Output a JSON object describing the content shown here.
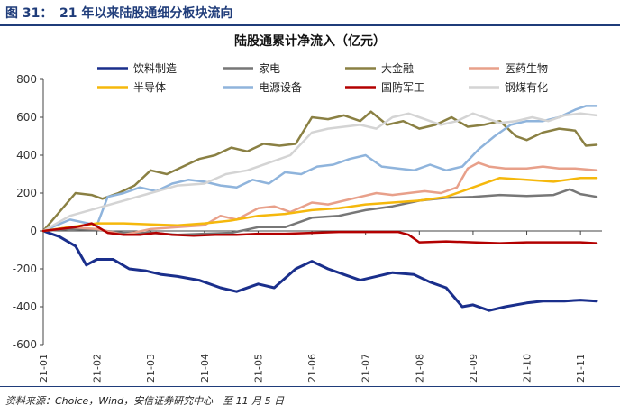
{
  "figure": {
    "label": "图 31：",
    "title": "21 年以来陆股通细分板块流向",
    "source": "资料来源：Choice，Wind，安信证券研究中心　至 11 月 5 日"
  },
  "chart_data": {
    "type": "line",
    "title": "陆股通累计净流入（亿元）",
    "xlabel": "",
    "ylabel": "",
    "ylim": [
      -600,
      800
    ],
    "yticks": [
      -600,
      -400,
      -200,
      0,
      200,
      400,
      600,
      800
    ],
    "xlim": [
      0,
      10.4
    ],
    "xticks": [
      {
        "label": "21-01",
        "x": 0
      },
      {
        "label": "21-02",
        "x": 1
      },
      {
        "label": "21-03",
        "x": 2
      },
      {
        "label": "21-04",
        "x": 3
      },
      {
        "label": "21-05",
        "x": 4
      },
      {
        "label": "21-06",
        "x": 5
      },
      {
        "label": "21-07",
        "x": 6
      },
      {
        "label": "21-08",
        "x": 7
      },
      {
        "label": "21-09",
        "x": 8
      },
      {
        "label": "21-10",
        "x": 9
      },
      {
        "label": "21-11",
        "x": 10
      }
    ],
    "grid": false,
    "legend": "top",
    "series": [
      {
        "name": "饮料制造",
        "color": "#1a2f8c",
        "width": 3,
        "x": [
          0,
          0.3,
          0.6,
          0.8,
          1.0,
          1.3,
          1.6,
          1.9,
          2.2,
          2.5,
          2.9,
          3.3,
          3.6,
          4.0,
          4.3,
          4.7,
          5.0,
          5.3,
          5.6,
          5.9,
          6.2,
          6.5,
          6.9,
          7.2,
          7.5,
          7.8,
          8.0,
          8.3,
          8.6,
          9.0,
          9.3,
          9.7,
          10.0,
          10.3
        ],
        "y": [
          0,
          -30,
          -80,
          -180,
          -150,
          -150,
          -200,
          -210,
          -230,
          -240,
          -260,
          -300,
          -320,
          -280,
          -300,
          -200,
          -160,
          -200,
          -230,
          -260,
          -240,
          -220,
          -230,
          -270,
          -300,
          -400,
          -390,
          -420,
          -400,
          -380,
          -370,
          -370,
          -365,
          -370
        ]
      },
      {
        "name": "家电",
        "color": "#777777",
        "width": 2.5,
        "x": [
          0,
          0.5,
          1.0,
          1.5,
          2.0,
          2.5,
          3.0,
          3.5,
          4.0,
          4.5,
          5.0,
          5.5,
          6.0,
          6.5,
          7.0,
          7.5,
          8.0,
          8.5,
          9.0,
          9.5,
          9.8,
          10.0,
          10.3
        ],
        "y": [
          0,
          10,
          5,
          -10,
          -10,
          -20,
          -15,
          -10,
          20,
          20,
          70,
          80,
          110,
          130,
          160,
          175,
          180,
          190,
          185,
          190,
          220,
          195,
          180
        ]
      },
      {
        "name": "大金融",
        "color": "#8a8043",
        "width": 2.5,
        "x": [
          0,
          0.3,
          0.6,
          0.9,
          1.1,
          1.4,
          1.7,
          2.0,
          2.3,
          2.6,
          2.9,
          3.2,
          3.5,
          3.8,
          4.1,
          4.4,
          4.7,
          5.0,
          5.3,
          5.6,
          5.9,
          6.1,
          6.4,
          6.7,
          7.0,
          7.3,
          7.6,
          7.9,
          8.2,
          8.5,
          8.8,
          9.0,
          9.3,
          9.6,
          9.9,
          10.1,
          10.3
        ],
        "y": [
          0,
          100,
          200,
          190,
          170,
          200,
          240,
          320,
          300,
          340,
          380,
          400,
          440,
          420,
          460,
          450,
          460,
          600,
          590,
          610,
          580,
          630,
          560,
          580,
          540,
          560,
          600,
          550,
          560,
          580,
          500,
          480,
          520,
          540,
          530,
          450,
          455
        ]
      },
      {
        "name": "医药生物",
        "color": "#e8a08a",
        "width": 2.5,
        "x": [
          0,
          0.5,
          1.0,
          1.5,
          2.0,
          2.5,
          3.0,
          3.3,
          3.6,
          4.0,
          4.3,
          4.6,
          5.0,
          5.3,
          5.6,
          5.9,
          6.2,
          6.5,
          6.8,
          7.1,
          7.4,
          7.7,
          7.9,
          8.1,
          8.3,
          8.6,
          9.0,
          9.3,
          9.6,
          9.9,
          10.3
        ],
        "y": [
          0,
          20,
          10,
          -20,
          10,
          20,
          30,
          80,
          60,
          120,
          130,
          100,
          150,
          140,
          160,
          180,
          200,
          190,
          200,
          210,
          200,
          230,
          330,
          360,
          340,
          330,
          330,
          340,
          330,
          330,
          320
        ]
      },
      {
        "name": "电源设备",
        "color": "#8fb4dc",
        "width": 2.5,
        "x": [
          0,
          0.5,
          1.0,
          1.2,
          1.5,
          1.8,
          2.1,
          2.4,
          2.7,
          3.0,
          3.3,
          3.6,
          3.9,
          4.2,
          4.5,
          4.8,
          5.1,
          5.4,
          5.7,
          6.0,
          6.3,
          6.6,
          6.9,
          7.2,
          7.5,
          7.8,
          8.1,
          8.4,
          8.7,
          9.0,
          9.3,
          9.6,
          9.9,
          10.1,
          10.3
        ],
        "y": [
          0,
          60,
          30,
          180,
          200,
          230,
          210,
          250,
          270,
          260,
          240,
          230,
          270,
          250,
          310,
          300,
          340,
          350,
          380,
          400,
          340,
          330,
          320,
          350,
          320,
          340,
          430,
          500,
          560,
          580,
          580,
          600,
          640,
          660,
          660
        ]
      },
      {
        "name": "钢煤有化",
        "color": "#d4d4d4",
        "width": 2.5,
        "x": [
          0,
          0.5,
          1.0,
          1.5,
          2.0,
          2.5,
          3.0,
          3.4,
          3.8,
          4.2,
          4.6,
          5.0,
          5.3,
          5.6,
          5.9,
          6.2,
          6.5,
          6.8,
          7.1,
          7.4,
          7.7,
          8.0,
          8.2,
          8.5,
          8.8,
          9.1,
          9.4,
          9.7,
          10.0,
          10.3
        ],
        "y": [
          0,
          80,
          120,
          160,
          200,
          240,
          250,
          300,
          320,
          360,
          400,
          520,
          540,
          550,
          560,
          540,
          600,
          620,
          590,
          560,
          580,
          620,
          600,
          570,
          580,
          600,
          580,
          610,
          620,
          610
        ]
      },
      {
        "name": "半导体",
        "color": "#f5b80c",
        "width": 2.5,
        "x": [
          0,
          0.5,
          1.0,
          1.5,
          2.0,
          2.5,
          3.0,
          3.5,
          4.0,
          4.5,
          5.0,
          5.5,
          6.0,
          6.5,
          7.0,
          7.5,
          8.0,
          8.5,
          9.0,
          9.5,
          10.0,
          10.3
        ],
        "y": [
          0,
          20,
          40,
          40,
          35,
          30,
          40,
          55,
          80,
          90,
          110,
          120,
          140,
          150,
          160,
          180,
          230,
          280,
          270,
          260,
          280,
          280
        ]
      },
      {
        "name": "国防军工",
        "color": "#b30000",
        "width": 2.5,
        "x": [
          0,
          0.3,
          0.6,
          0.9,
          1.2,
          1.5,
          1.8,
          2.1,
          2.4,
          2.8,
          3.2,
          3.6,
          4.0,
          4.5,
          5.0,
          5.5,
          6.0,
          6.3,
          6.6,
          6.8,
          7.0,
          7.5,
          8.0,
          8.5,
          9.0,
          9.5,
          10.0,
          10.3
        ],
        "y": [
          0,
          10,
          20,
          40,
          -10,
          -20,
          -20,
          -10,
          -20,
          -25,
          -20,
          -20,
          -15,
          -15,
          -10,
          -5,
          -5,
          -5,
          -5,
          -20,
          -60,
          -55,
          -60,
          -65,
          -60,
          -60,
          -60,
          -65
        ]
      }
    ]
  }
}
